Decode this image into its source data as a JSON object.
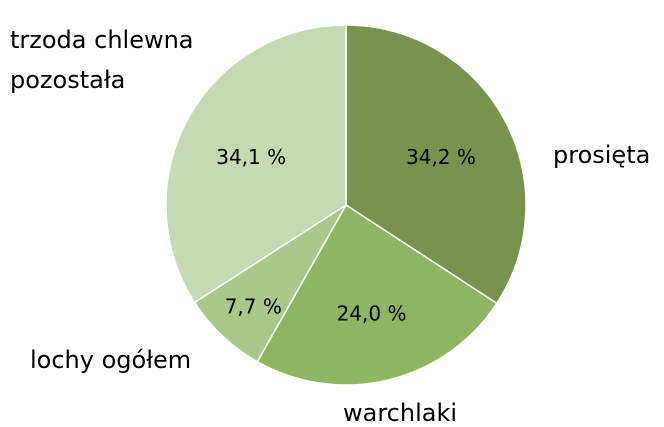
{
  "chart_data": {
    "type": "pie",
    "categories": [
      "prosięta",
      "warchlaki",
      "lochy ogółem",
      "trzoda chlewna pozostała"
    ],
    "values": [
      34.2,
      24.0,
      7.7,
      34.1
    ],
    "value_labels": [
      "34,2 %",
      "24,0 %",
      "7,7 %",
      "34,1 %"
    ],
    "colors": [
      "#77934e",
      "#8db563",
      "#a8c98a",
      "#c4dab2"
    ]
  }
}
